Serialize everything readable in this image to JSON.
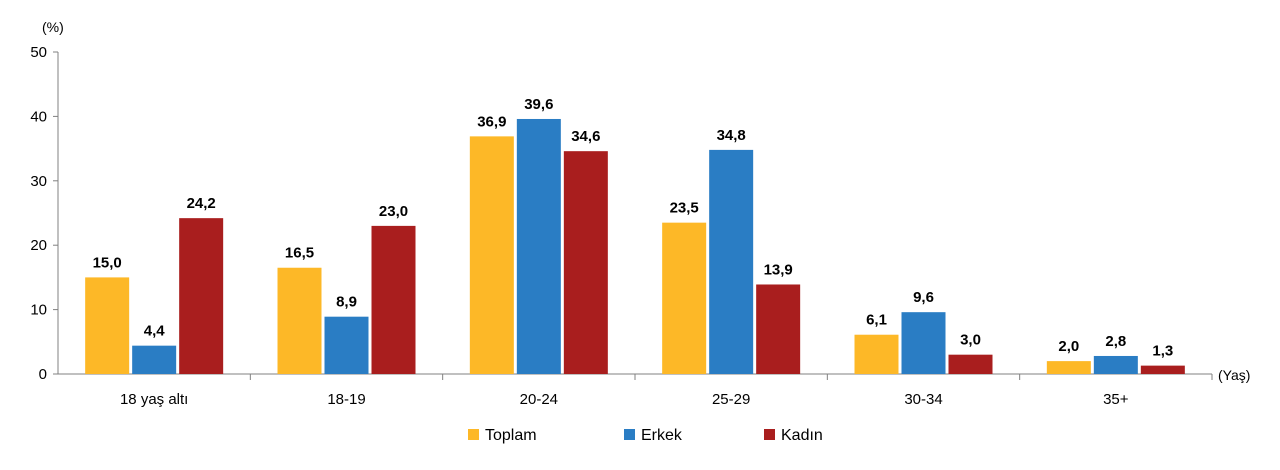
{
  "chart_data": {
    "type": "bar",
    "y_unit": "(%)",
    "x_unit": "(Yaş)",
    "categories": [
      "18 yaş altı",
      "18-19",
      "20-24",
      "25-29",
      "30-34",
      "35+"
    ],
    "series": [
      {
        "name": "Toplam",
        "color": "#FDB827",
        "values": [
          15.0,
          16.5,
          36.9,
          23.5,
          6.1,
          2.0
        ],
        "labels": [
          "15,0",
          "16,5",
          "36,9",
          "23,5",
          "6,1",
          "2,0"
        ]
      },
      {
        "name": "Erkek",
        "color": "#2A7DC4",
        "values": [
          4.4,
          8.9,
          39.6,
          34.8,
          9.6,
          2.8
        ],
        "labels": [
          "4,4",
          "8,9",
          "39,6",
          "34,8",
          "9,6",
          "2,8"
        ]
      },
      {
        "name": "Kadın",
        "color": "#A91E1E",
        "values": [
          24.2,
          23.0,
          34.6,
          13.9,
          3.0,
          1.3
        ],
        "labels": [
          "24,2",
          "23,0",
          "34,6",
          "13,9",
          "3,0",
          "1,3"
        ]
      }
    ],
    "ylim": [
      0,
      50
    ],
    "yticks": [
      0,
      10,
      20,
      30,
      40,
      50
    ],
    "grid": false,
    "legend_position": "bottom-center"
  }
}
